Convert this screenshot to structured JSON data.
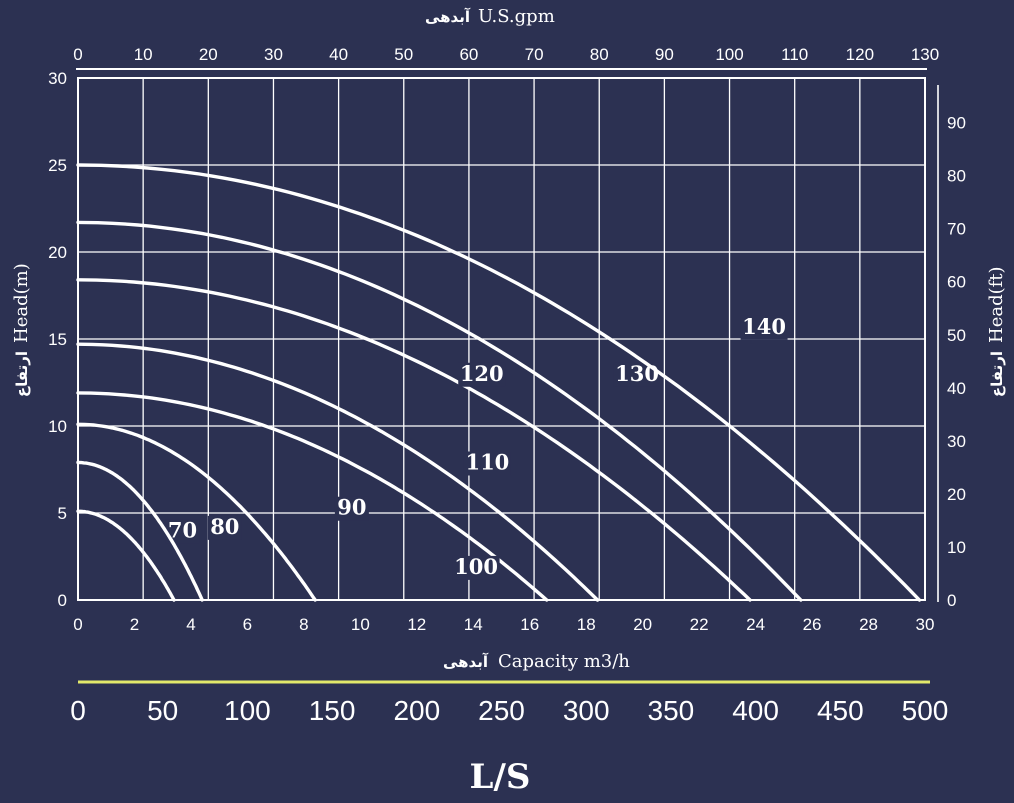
{
  "chart_data": {
    "type": "line",
    "top_axis": {
      "title": "U.S.gpm",
      "title_fa": "آبدهی",
      "ticks": [
        "0",
        "10",
        "20",
        "30",
        "40",
        "50",
        "60",
        "70",
        "80",
        "90",
        "100",
        "110",
        "120",
        "130"
      ],
      "range": [
        0,
        130
      ]
    },
    "x_axis": {
      "title": "Capacity m3/h",
      "title_fa": "آبدهی",
      "ticks": [
        "0",
        "2",
        "4",
        "6",
        "8",
        "10",
        "12",
        "14",
        "16",
        "18",
        "20",
        "22",
        "24",
        "26",
        "28",
        "30"
      ],
      "range": [
        0,
        30
      ]
    },
    "y_left": {
      "title": "Head(m)",
      "title_fa": "ارتفاع",
      "ticks": [
        "0",
        "5",
        "10",
        "15",
        "20",
        "25",
        "30"
      ],
      "range": [
        0,
        30
      ]
    },
    "y_right": {
      "title": "Head(ft)",
      "title_fa": "ارتفاع",
      "ticks": [
        "0",
        "10",
        "20",
        "30",
        "40",
        "50",
        "60",
        "70",
        "80",
        "90"
      ],
      "range": [
        0,
        98.4
      ]
    },
    "bottom_axis": {
      "title": "L/S",
      "ticks": [
        "0",
        "50",
        "100",
        "150",
        "200",
        "250",
        "300",
        "350",
        "400",
        "450",
        "500"
      ]
    },
    "grid": true,
    "colors": {
      "background": "#2c3152",
      "lines": "#ffffff"
    },
    "series": [
      {
        "name": "70",
        "h0": 5.1,
        "q_max": 3.4,
        "label_at": [
          3.7,
          3.6
        ]
      },
      {
        "name": "80",
        "h0": 7.9,
        "q_max": 4.4,
        "label_at": [
          5.2,
          3.8
        ]
      },
      {
        "name": "90",
        "h0": 10.1,
        "q_max": 8.4,
        "label_at": [
          9.7,
          4.9
        ]
      },
      {
        "name": "100",
        "h0": 11.9,
        "q_max": 16.6,
        "label_at": [
          14.1,
          1.5
        ]
      },
      {
        "name": "110",
        "h0": 14.7,
        "q_max": 18.4,
        "label_at": [
          14.5,
          7.5
        ]
      },
      {
        "name": "120",
        "h0": 18.4,
        "q_max": 23.8,
        "label_at": [
          14.3,
          12.6
        ]
      },
      {
        "name": "130",
        "h0": 21.7,
        "q_max": 25.6,
        "label_at": [
          19.8,
          12.6
        ]
      },
      {
        "name": "140",
        "h0": 25.0,
        "q_max": 29.8,
        "label_at": [
          24.3,
          15.3
        ]
      }
    ]
  }
}
